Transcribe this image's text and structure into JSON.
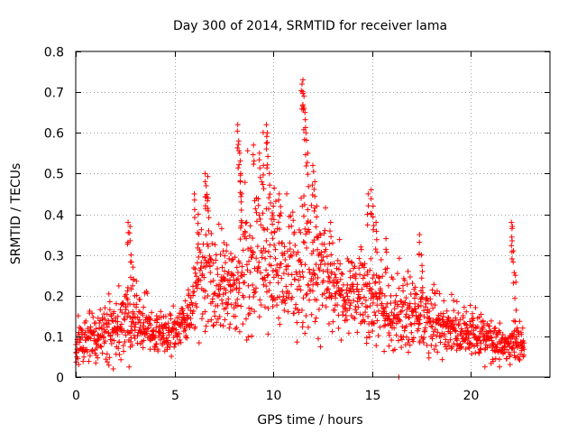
{
  "chart_data": {
    "type": "scatter",
    "title": "Day 300 of 2014, SRMTID for receiver lama",
    "xlabel": "GPS time / hours",
    "ylabel": "SRMTID / TECUs",
    "xlim": [
      0,
      24
    ],
    "ylim": [
      0,
      0.8
    ],
    "xticks": [
      0,
      5,
      10,
      15,
      20
    ],
    "yticks": [
      0,
      0.1,
      0.2,
      0.3,
      0.4,
      0.5,
      0.6,
      0.7,
      0.8
    ],
    "xtick_labels": [
      "0",
      "5",
      "10",
      "15",
      "20"
    ],
    "ytick_labels": [
      "0",
      "0.1",
      "0.2",
      "0.3",
      "0.4",
      "0.5",
      "0.6",
      "0.7",
      "0.8"
    ],
    "grid": true,
    "marker": "+",
    "series": [
      {
        "name": "SRMTID",
        "color": "#ff0000",
        "envelope": [
          {
            "x": 0.0,
            "base": 0.08,
            "spread": 0.04
          },
          {
            "x": 1.0,
            "base": 0.1,
            "spread": 0.05
          },
          {
            "x": 2.0,
            "base": 0.11,
            "spread": 0.06
          },
          {
            "x": 2.7,
            "base": 0.15,
            "spread": 0.09
          },
          {
            "x": 3.5,
            "base": 0.12,
            "spread": 0.06
          },
          {
            "x": 4.5,
            "base": 0.1,
            "spread": 0.04
          },
          {
            "x": 5.5,
            "base": 0.13,
            "spread": 0.05
          },
          {
            "x": 6.5,
            "base": 0.25,
            "spread": 0.12
          },
          {
            "x": 7.5,
            "base": 0.2,
            "spread": 0.1
          },
          {
            "x": 8.5,
            "base": 0.28,
            "spread": 0.14
          },
          {
            "x": 9.5,
            "base": 0.3,
            "spread": 0.16
          },
          {
            "x": 10.5,
            "base": 0.25,
            "spread": 0.12
          },
          {
            "x": 11.5,
            "base": 0.3,
            "spread": 0.18
          },
          {
            "x": 12.5,
            "base": 0.25,
            "spread": 0.12
          },
          {
            "x": 13.5,
            "base": 0.2,
            "spread": 0.08
          },
          {
            "x": 14.5,
            "base": 0.2,
            "spread": 0.1
          },
          {
            "x": 15.5,
            "base": 0.17,
            "spread": 0.09
          },
          {
            "x": 16.5,
            "base": 0.15,
            "spread": 0.08
          },
          {
            "x": 17.5,
            "base": 0.15,
            "spread": 0.07
          },
          {
            "x": 18.5,
            "base": 0.12,
            "spread": 0.06
          },
          {
            "x": 19.5,
            "base": 0.11,
            "spread": 0.05
          },
          {
            "x": 20.5,
            "base": 0.1,
            "spread": 0.05
          },
          {
            "x": 21.5,
            "base": 0.08,
            "spread": 0.04
          },
          {
            "x": 22.7,
            "base": 0.08,
            "spread": 0.04
          }
        ],
        "peaks": [
          {
            "x": 2.65,
            "y": 0.38
          },
          {
            "x": 2.75,
            "y": 0.37
          },
          {
            "x": 2.8,
            "y": 0.3
          },
          {
            "x": 2.9,
            "y": 0.27
          },
          {
            "x": 6.0,
            "y": 0.45
          },
          {
            "x": 6.2,
            "y": 0.4
          },
          {
            "x": 6.55,
            "y": 0.5
          },
          {
            "x": 6.6,
            "y": 0.47
          },
          {
            "x": 6.7,
            "y": 0.44
          },
          {
            "x": 7.5,
            "y": 0.33
          },
          {
            "x": 8.2,
            "y": 0.62
          },
          {
            "x": 8.25,
            "y": 0.58
          },
          {
            "x": 8.3,
            "y": 0.55
          },
          {
            "x": 8.35,
            "y": 0.5
          },
          {
            "x": 8.4,
            "y": 0.45
          },
          {
            "x": 9.0,
            "y": 0.57
          },
          {
            "x": 9.3,
            "y": 0.55
          },
          {
            "x": 9.5,
            "y": 0.52
          },
          {
            "x": 9.65,
            "y": 0.62
          },
          {
            "x": 9.7,
            "y": 0.6
          },
          {
            "x": 9.8,
            "y": 0.5
          },
          {
            "x": 10.0,
            "y": 0.42
          },
          {
            "x": 10.3,
            "y": 0.45
          },
          {
            "x": 11.45,
            "y": 0.72
          },
          {
            "x": 11.5,
            "y": 0.73
          },
          {
            "x": 11.55,
            "y": 0.69
          },
          {
            "x": 11.6,
            "y": 0.65
          },
          {
            "x": 11.65,
            "y": 0.6
          },
          {
            "x": 11.75,
            "y": 0.55
          },
          {
            "x": 12.0,
            "y": 0.52
          },
          {
            "x": 12.1,
            "y": 0.48
          },
          {
            "x": 12.2,
            "y": 0.42
          },
          {
            "x": 12.9,
            "y": 0.38
          },
          {
            "x": 14.8,
            "y": 0.45
          },
          {
            "x": 14.95,
            "y": 0.46
          },
          {
            "x": 15.05,
            "y": 0.42
          },
          {
            "x": 15.2,
            "y": 0.38
          },
          {
            "x": 15.7,
            "y": 0.34
          },
          {
            "x": 17.4,
            "y": 0.35
          },
          {
            "x": 17.5,
            "y": 0.3
          },
          {
            "x": 22.05,
            "y": 0.38
          },
          {
            "x": 22.1,
            "y": 0.37
          },
          {
            "x": 22.15,
            "y": 0.31
          },
          {
            "x": 22.25,
            "y": 0.25
          },
          {
            "x": 16.35,
            "y": 0.0
          },
          {
            "x": 1.9,
            "y": 0.02
          }
        ]
      }
    ]
  }
}
